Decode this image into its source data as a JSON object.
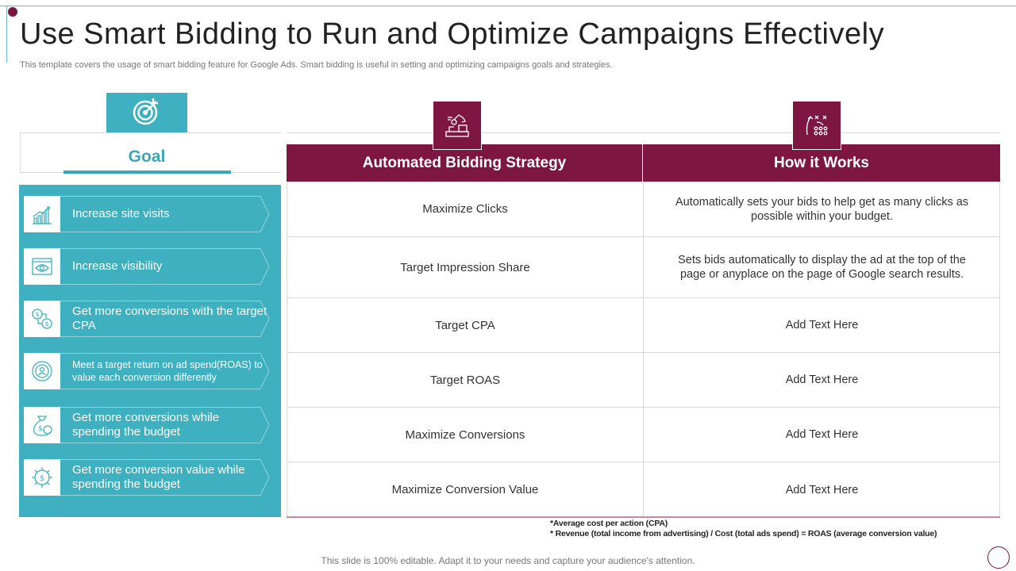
{
  "title": "Use Smart Bidding to Run and Optimize Campaigns Effectively",
  "subtitle": "This template covers the usage of smart bidding feature for Google Ads. Smart bidding is useful in setting and optimizing campaigns goals and strategies.",
  "goal": {
    "header": "Goal",
    "icon": "target-arrow-icon",
    "items": [
      {
        "label": "Increase site visits",
        "icon": "growth-chart-icon"
      },
      {
        "label": "Increase visibility",
        "icon": "eye-browser-icon"
      },
      {
        "label": "Get more conversions with the target CPA",
        "icon": "dollar-exchange-icon"
      },
      {
        "label": "Meet a target return on ad spend(ROAS) to value each conversion differently",
        "icon": "person-cycle-icon"
      },
      {
        "label": "Get more conversions while spending the budget",
        "icon": "money-bag-icon"
      },
      {
        "label": "Get more conversion value while spending the budget",
        "icon": "gear-dollar-icon"
      }
    ]
  },
  "table": {
    "headers": [
      "Automated Bidding Strategy",
      "How it Works"
    ],
    "header_icons": [
      "automation-robot-icon",
      "strategy-play-icon"
    ],
    "rows": [
      {
        "strategy": "Maximize Clicks",
        "how": "Automatically sets your bids to help get as many clicks as possible within your budget."
      },
      {
        "strategy": "Target Impression Share",
        "how": "Sets bids automatically to display the ad at the top of the page or anyplace on the page of Google search results."
      },
      {
        "strategy": "Target CPA",
        "how": "Add Text Here"
      },
      {
        "strategy": "Target ROAS",
        "how": "Add Text Here"
      },
      {
        "strategy": "Maximize Conversions",
        "how": "Add Text Here"
      },
      {
        "strategy": "Maximize Conversion Value",
        "how": "Add Text Here"
      }
    ]
  },
  "notes": [
    "*Average cost per action (CPA)",
    "* Revenue (total income from advertising) / Cost (total ads spend) = ROAS (average conversion value)"
  ],
  "footer": "This slide is 100% editable. Adapt it to your needs and capture your audience's attention.",
  "colors": {
    "accent_teal": "#3fb0bf",
    "accent_maroon": "#7d1640"
  }
}
